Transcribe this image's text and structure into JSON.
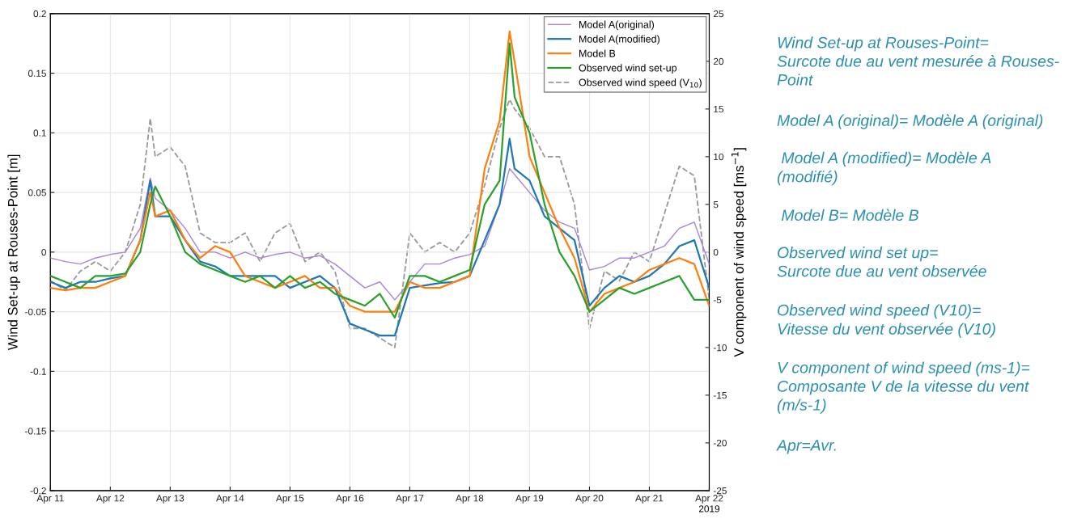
{
  "chart_data": {
    "type": "line",
    "ylabel": "Wind Set-up at Rouses-Point [m]",
    "y2label": "V component of wind speed [ms$^{−1}$]",
    "x": [
      "2019-04-11T00:00",
      "2019-04-11T06:00",
      "2019-04-11T12:00",
      "2019-04-11T18:00",
      "2019-04-12T00:00",
      "2019-04-12T06:00",
      "2019-04-12T12:00",
      "2019-04-12T16:00",
      "2019-04-12T18:00",
      "2019-04-13T00:00",
      "2019-04-13T06:00",
      "2019-04-13T12:00",
      "2019-04-13T18:00",
      "2019-04-14T00:00",
      "2019-04-14T06:00",
      "2019-04-14T12:00",
      "2019-04-14T18:00",
      "2019-04-15T00:00",
      "2019-04-15T06:00",
      "2019-04-15T12:00",
      "2019-04-15T18:00",
      "2019-04-16T00:00",
      "2019-04-16T06:00",
      "2019-04-16T12:00",
      "2019-04-16T18:00",
      "2019-04-17T00:00",
      "2019-04-17T06:00",
      "2019-04-17T12:00",
      "2019-04-17T18:00",
      "2019-04-18T00:00",
      "2019-04-18T06:00",
      "2019-04-18T12:00",
      "2019-04-18T16:00",
      "2019-04-18T18:00",
      "2019-04-19T00:00",
      "2019-04-19T06:00",
      "2019-04-19T12:00",
      "2019-04-19T18:00",
      "2019-04-20T00:00",
      "2019-04-20T06:00",
      "2019-04-20T12:00",
      "2019-04-20T18:00",
      "2019-04-21T00:00",
      "2019-04-21T06:00",
      "2019-04-21T12:00",
      "2019-04-21T18:00",
      "2019-04-22T00:00"
    ],
    "series": [
      {
        "name": "Model A(original)",
        "color": "#a883d8",
        "values": [
          -0.005,
          -0.008,
          -0.01,
          -0.005,
          -0.002,
          0.0,
          0.02,
          0.062,
          0.045,
          0.035,
          0.02,
          0.0,
          0.0,
          -0.005,
          0.0,
          -0.005,
          -0.002,
          0.0,
          -0.005,
          -0.003,
          -0.01,
          -0.02,
          -0.03,
          -0.025,
          -0.04,
          -0.025,
          -0.01,
          -0.01,
          -0.005,
          -0.002,
          0.005,
          0.04,
          0.07,
          0.065,
          0.05,
          0.035,
          0.025,
          0.02,
          -0.015,
          -0.012,
          -0.005,
          -0.005,
          0.0,
          0.005,
          0.02,
          0.025,
          -0.01
        ]
      },
      {
        "name": "Model A(modified)",
        "color": "#1f77b4",
        "values": [
          -0.025,
          -0.03,
          -0.025,
          -0.025,
          -0.022,
          -0.02,
          0.01,
          0.06,
          0.03,
          0.03,
          0.01,
          -0.008,
          -0.012,
          -0.02,
          -0.02,
          -0.02,
          -0.02,
          -0.03,
          -0.025,
          -0.02,
          -0.03,
          -0.06,
          -0.065,
          -0.07,
          -0.07,
          -0.03,
          -0.028,
          -0.026,
          -0.025,
          -0.02,
          0.01,
          0.04,
          0.095,
          0.07,
          0.06,
          0.03,
          0.02,
          0.01,
          -0.045,
          -0.03,
          -0.02,
          -0.025,
          -0.02,
          -0.01,
          0.005,
          0.01,
          -0.03
        ]
      },
      {
        "name": "Model B",
        "color": "#ff7f0e",
        "values": [
          -0.03,
          -0.032,
          -0.03,
          -0.03,
          -0.025,
          -0.02,
          0.01,
          0.05,
          0.03,
          0.035,
          0.01,
          -0.005,
          0.005,
          0.0,
          -0.02,
          -0.025,
          -0.03,
          -0.025,
          -0.02,
          -0.03,
          -0.03,
          -0.045,
          -0.05,
          -0.05,
          -0.05,
          -0.025,
          -0.03,
          -0.03,
          -0.025,
          -0.02,
          0.07,
          0.11,
          0.185,
          0.16,
          0.08,
          0.05,
          0.02,
          -0.005,
          -0.05,
          -0.035,
          -0.03,
          -0.025,
          -0.015,
          -0.01,
          -0.005,
          -0.01,
          -0.045
        ]
      },
      {
        "name": "Observed wind set-up",
        "color": "#2ca02c",
        "values": [
          -0.02,
          -0.025,
          -0.03,
          -0.02,
          -0.02,
          -0.018,
          0.0,
          0.04,
          0.055,
          0.03,
          0.0,
          -0.01,
          -0.015,
          -0.02,
          -0.025,
          -0.02,
          -0.03,
          -0.02,
          -0.03,
          -0.025,
          -0.035,
          -0.04,
          -0.045,
          -0.035,
          -0.055,
          -0.02,
          -0.02,
          -0.025,
          -0.02,
          -0.015,
          0.04,
          0.06,
          0.175,
          0.13,
          0.1,
          0.04,
          0.0,
          -0.02,
          -0.05,
          -0.04,
          -0.03,
          -0.035,
          -0.03,
          -0.025,
          -0.02,
          -0.04,
          -0.04
        ]
      },
      {
        "name": "Observed wind speed (V$_{10}$)",
        "color": "#999999",
        "axis": "y2",
        "line_style": "dashed",
        "values": [
          -3,
          -4,
          -2,
          -1,
          -2,
          0,
          5,
          14,
          10,
          11,
          9,
          2,
          1,
          1,
          2,
          -1,
          2,
          3,
          -1,
          0,
          -2,
          -8,
          -8,
          -9,
          -10,
          2,
          0,
          1,
          0,
          2,
          7,
          13,
          16,
          15,
          13,
          10,
          10,
          5,
          -8,
          -2,
          -3,
          0,
          -1,
          4,
          9,
          8,
          -5
        ]
      }
    ],
    "xlim": [
      "2019-04-11",
      "2019-04-22"
    ],
    "xticks": [
      {
        "value": "2019-04-11",
        "label": "Apr 11"
      },
      {
        "value": "2019-04-12",
        "label": "Apr 12"
      },
      {
        "value": "2019-04-13",
        "label": "Apr 13"
      },
      {
        "value": "2019-04-14",
        "label": "Apr 14"
      },
      {
        "value": "2019-04-15",
        "label": "Apr 15"
      },
      {
        "value": "2019-04-16",
        "label": "Apr 16"
      },
      {
        "value": "2019-04-17",
        "label": "Apr 17"
      },
      {
        "value": "2019-04-18",
        "label": "Apr 18"
      },
      {
        "value": "2019-04-19",
        "label": "Apr 19"
      },
      {
        "value": "2019-04-20",
        "label": "Apr 20"
      },
      {
        "value": "2019-04-21",
        "label": "Apr 21"
      },
      {
        "value": "2019-04-22",
        "label": "Apr 22"
      }
    ],
    "ylim": [
      -0.2,
      0.2
    ],
    "yticks": [
      -0.2,
      -0.15,
      -0.1,
      -0.05,
      0,
      0.05,
      0.1,
      0.15,
      0.2
    ],
    "y2lim": [
      -25,
      25
    ],
    "y2ticks": [
      -25,
      -20,
      -15,
      -10,
      -5,
      0,
      5,
      10,
      15,
      20,
      25
    ],
    "grid": true,
    "legend": "top right",
    "marker": "none",
    "annotations": [
      "2019",
      "Wind Set-up at Rouses-Point=\nSurcote due au vent mesurée à Rouses-\nPoint",
      "Model A (original)= Modèle A (original)",
      " Model A (modified)= Modèle A\n(modifié)",
      " Model B= Modèle B",
      "Observed wind set up=\nSurcote due au vent observée",
      "Observed wind speed (V10)=\nVitesse du vent observée (V10)",
      "V component of wind speed (ms-1)=\nComposante V de la vitesse du vent\n(m/s-1)",
      "Apr=Avr."
    ]
  }
}
